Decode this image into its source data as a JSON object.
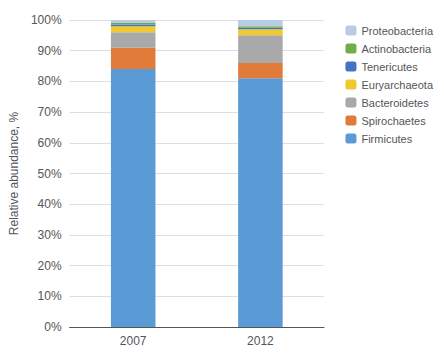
{
  "chart_data": {
    "type": "bar",
    "stacked": true,
    "categories": [
      "2007",
      "2012"
    ],
    "series": [
      {
        "name": "Firmicutes",
        "color": "#5B9BD5",
        "values": [
          84.0,
          81.0
        ]
      },
      {
        "name": "Spirochaetes",
        "color": "#E07B39",
        "values": [
          7.0,
          5.0
        ]
      },
      {
        "name": "Bacteroidetes",
        "color": "#A9A9A9",
        "values": [
          5.0,
          9.0
        ]
      },
      {
        "name": "Euryarchaeota",
        "color": "#F0C832",
        "values": [
          2.0,
          2.0
        ]
      },
      {
        "name": "Tenericutes",
        "color": "#4472C4",
        "values": [
          0.5,
          0.5
        ]
      },
      {
        "name": "Actinobacteria",
        "color": "#70AD47",
        "values": [
          0.5,
          0.5
        ]
      },
      {
        "name": "Proteobacteria",
        "color": "#B8CCE4",
        "values": [
          1.0,
          2.0
        ]
      }
    ],
    "ylabel": "Relative abundance, %",
    "ylim": [
      0,
      100
    ],
    "yticks": [
      {
        "value": 0,
        "label": "0%"
      },
      {
        "value": 10,
        "label": "10%"
      },
      {
        "value": 20,
        "label": "20%"
      },
      {
        "value": 30,
        "label": "30%"
      },
      {
        "value": 40,
        "label": "40%"
      },
      {
        "value": 50,
        "label": "50%"
      },
      {
        "value": 60,
        "label": "60%"
      },
      {
        "value": 70,
        "label": "70%"
      },
      {
        "value": 80,
        "label": "80%"
      },
      {
        "value": 90,
        "label": "90%"
      },
      {
        "value": 100,
        "label": "100%"
      }
    ],
    "grid": true,
    "legend": "right"
  }
}
